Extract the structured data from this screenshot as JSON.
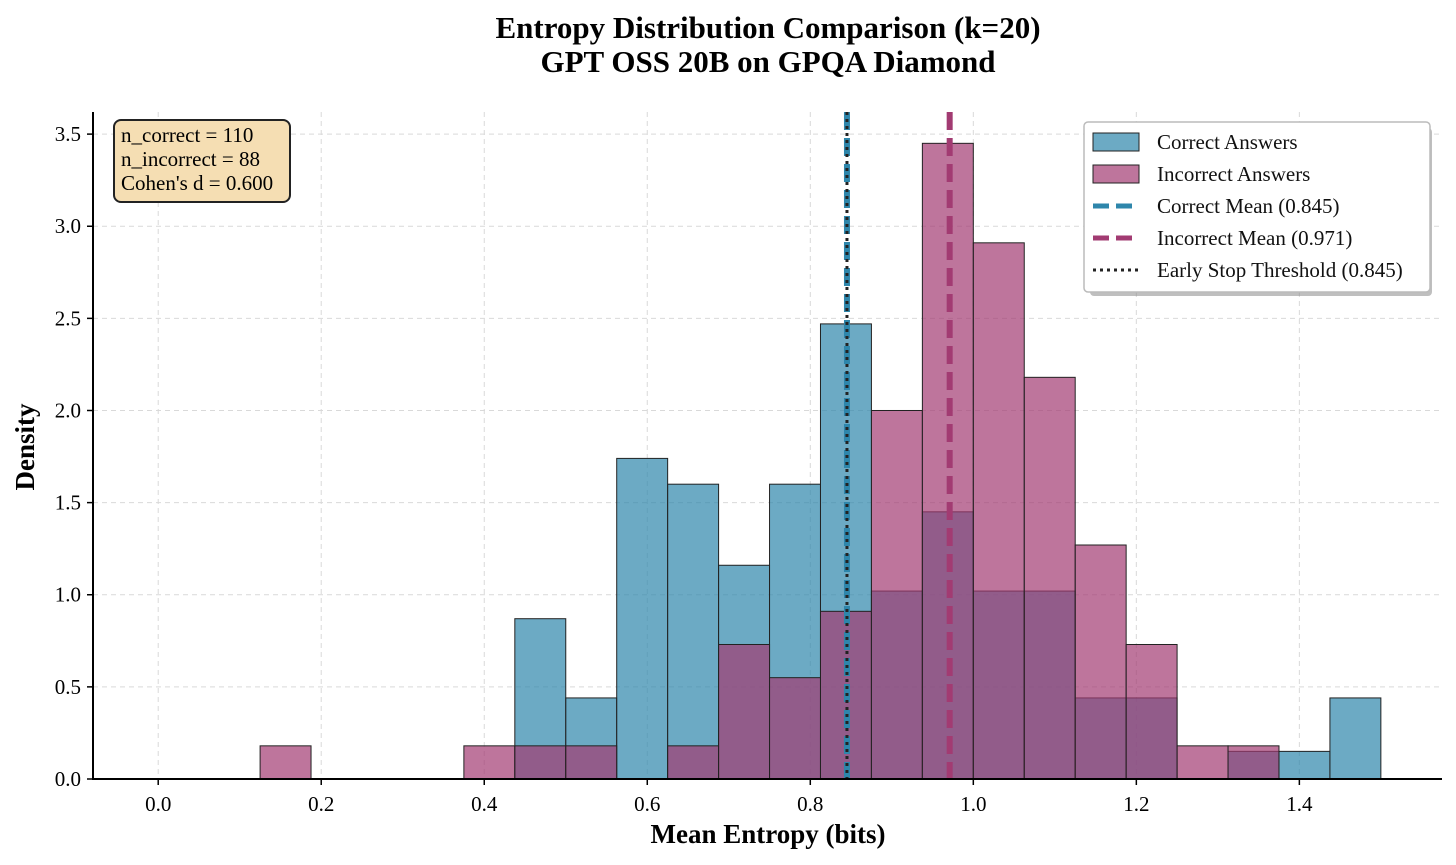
{
  "chart_data": {
    "type": "histogram",
    "title": "Entropy Distribution Comparison (k=20)",
    "subtitle": "GPT OSS 20B on GPQA Diamond",
    "xlabel": "Mean Entropy (bits)",
    "ylabel": "Density",
    "xlim": [
      -0.08,
      1.575
    ],
    "ylim": [
      0,
      3.62
    ],
    "xticks": [
      0.0,
      0.2,
      0.4,
      0.6,
      0.8,
      1.0,
      1.2,
      1.4
    ],
    "xtick_labels": [
      "0.0",
      "0.2",
      "0.4",
      "0.6",
      "0.8",
      "1.0",
      "1.2",
      "1.4"
    ],
    "yticks": [
      0.0,
      0.5,
      1.0,
      1.5,
      2.0,
      2.5,
      3.0,
      3.5
    ],
    "ytick_labels": [
      "0.0",
      "0.5",
      "1.0",
      "1.5",
      "2.0",
      "2.5",
      "3.0",
      "3.5"
    ],
    "grid": true,
    "colors": {
      "correct": "#2e86ab",
      "incorrect": "#a23b72",
      "threshold": "#222222"
    },
    "series": [
      {
        "name": "Correct Answers",
        "key": "correct",
        "bins": [
          [
            0.4375,
            0.5,
            0.87
          ],
          [
            0.5,
            0.5625,
            0.44
          ],
          [
            0.5625,
            0.625,
            1.74
          ],
          [
            0.625,
            0.6875,
            1.6
          ],
          [
            0.6875,
            0.75,
            1.16
          ],
          [
            0.75,
            0.8125,
            1.6
          ],
          [
            0.8125,
            0.875,
            2.47
          ],
          [
            0.875,
            0.9375,
            1.02
          ],
          [
            0.9375,
            1.0,
            1.45
          ],
          [
            1.0,
            1.0625,
            1.02
          ],
          [
            1.0625,
            1.125,
            1.02
          ],
          [
            1.125,
            1.1875,
            0.44
          ],
          [
            1.1875,
            1.25,
            0.44
          ],
          [
            1.3125,
            1.375,
            0.15
          ],
          [
            1.375,
            1.4375,
            0.15
          ],
          [
            1.4375,
            1.5,
            0.44
          ]
        ]
      },
      {
        "name": "Incorrect Answers",
        "key": "incorrect",
        "bins": [
          [
            0.125,
            0.1875,
            0.18
          ],
          [
            0.375,
            0.4375,
            0.18
          ],
          [
            0.4375,
            0.5,
            0.18
          ],
          [
            0.5,
            0.5625,
            0.18
          ],
          [
            0.625,
            0.6875,
            0.18
          ],
          [
            0.6875,
            0.75,
            0.73
          ],
          [
            0.75,
            0.8125,
            0.55
          ],
          [
            0.8125,
            0.875,
            0.91
          ],
          [
            0.875,
            0.9375,
            2.0
          ],
          [
            0.9375,
            1.0,
            3.45
          ],
          [
            1.0,
            1.0625,
            2.91
          ],
          [
            1.0625,
            1.125,
            2.18
          ],
          [
            1.125,
            1.1875,
            1.27
          ],
          [
            1.1875,
            1.25,
            0.73
          ],
          [
            1.25,
            1.3125,
            0.18
          ],
          [
            1.3125,
            1.375,
            0.18
          ]
        ]
      }
    ],
    "vlines": [
      {
        "name": "Correct Mean",
        "x": 0.845,
        "key": "correct",
        "style": "dashed"
      },
      {
        "name": "Incorrect Mean",
        "x": 0.971,
        "key": "incorrect",
        "style": "dashed"
      },
      {
        "name": "Early Stop Threshold",
        "x": 0.845,
        "key": "threshold",
        "style": "dotted"
      }
    ],
    "legend": {
      "position": "top-right",
      "entries": [
        {
          "label": "Correct Answers",
          "kind": "patch",
          "key": "correct"
        },
        {
          "label": "Incorrect Answers",
          "kind": "patch",
          "key": "incorrect"
        },
        {
          "label": "Correct Mean (0.845)",
          "kind": "dashed",
          "key": "correct"
        },
        {
          "label": "Incorrect Mean (0.971)",
          "kind": "dashed",
          "key": "incorrect"
        },
        {
          "label": "Early Stop Threshold (0.845)",
          "kind": "dotted",
          "key": "threshold"
        }
      ]
    },
    "stats_box": {
      "position": "top-left",
      "lines": [
        "n_correct = 110",
        "n_incorrect = 88",
        "Cohen's d = 0.600"
      ]
    }
  }
}
